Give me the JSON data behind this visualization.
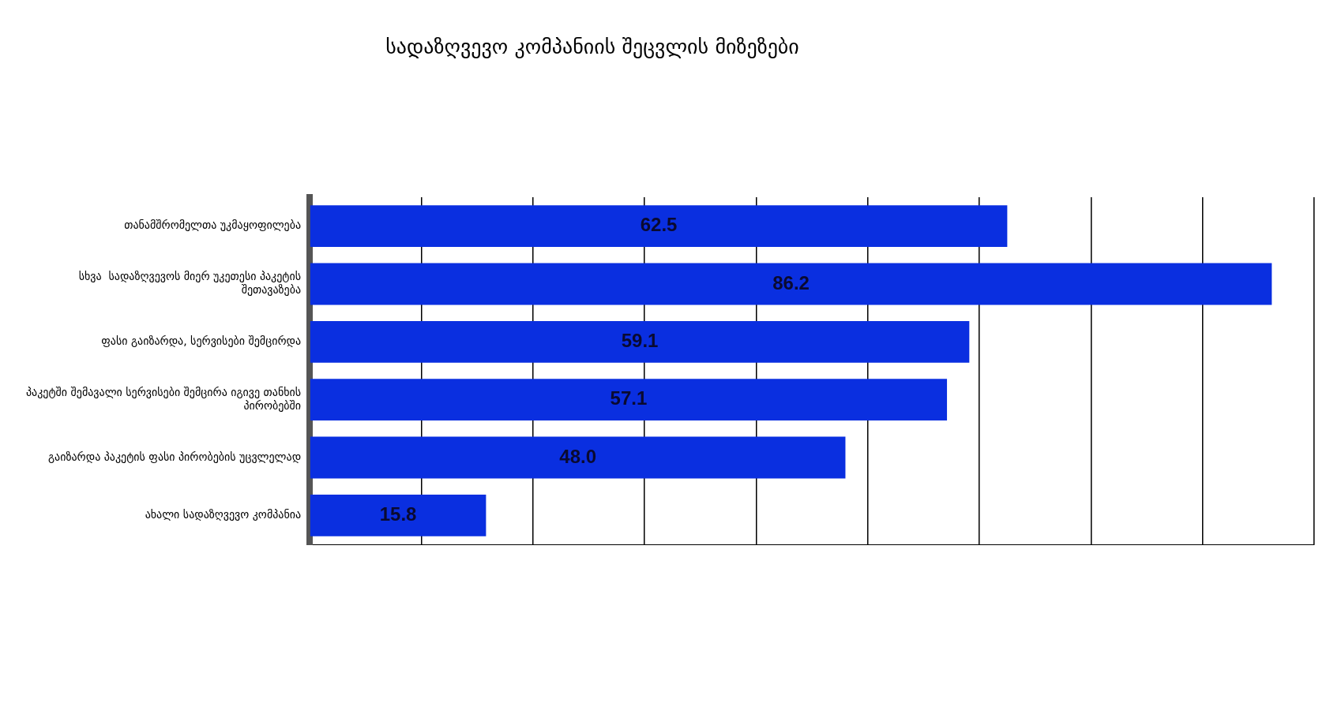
{
  "chart_data": {
    "type": "bar",
    "orientation": "horizontal",
    "title": "სადაზღვევო კომპანიის შეცვლის მიზეზები",
    "categories": [
      "თანამშრომელთა უკმაყოფილება",
      "სხვა  სადაზღვევოს მიერ უკეთესი პაკეტის შეთავაზება",
      "ფასი გაიზარდა, სერვისები შემცირდა",
      "პაკეტში შემავალი სერვისები შემცირა იგივე თანხის პირობებში",
      "გაიზარდა პაკეტის ფასი პირობების უცვლელად",
      "ახალი სადაზღვევო კომპანია"
    ],
    "values": [
      62.5,
      86.2,
      59.1,
      57.1,
      48.0,
      15.8
    ],
    "value_labels": [
      "62.5",
      "86.2",
      "59.1",
      "57.1",
      "48.0",
      "15.8"
    ],
    "color": "#0a2fe0",
    "xlim": [
      0,
      90
    ],
    "xticks": [
      {
        "value": 0,
        "label": null
      },
      {
        "value": 10,
        "label": null
      },
      {
        "value": 20,
        "label": null
      },
      {
        "value": 30,
        "label": null
      },
      {
        "value": 40,
        "label": null
      },
      {
        "value": 50,
        "label": null
      },
      {
        "value": 60,
        "label": null
      },
      {
        "value": 70,
        "label": null
      },
      {
        "value": 80,
        "label": null
      },
      {
        "value": 90,
        "label": null
      }
    ],
    "grid": "x",
    "tick_labels": "y",
    "legend": false
  }
}
